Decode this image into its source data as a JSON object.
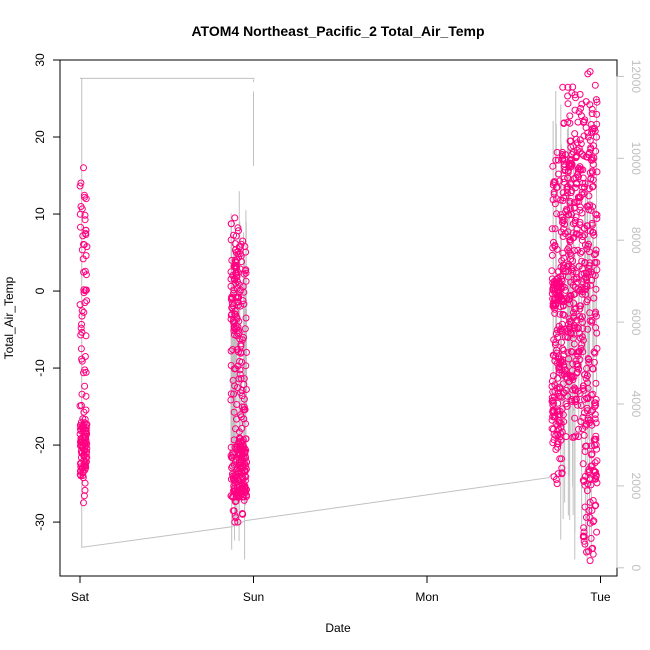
{
  "chart_data": {
    "type": "scatter",
    "title": "ATOM4 Northeast_Pacific_2 Total_Air_Temp",
    "xlabel": "Date",
    "ylabel": "Total_Air_Temp",
    "x_axis_type": "date",
    "xlim": [
      0,
      3.1
    ],
    "x_ticks": [
      {
        "value": 0,
        "label": "Sat"
      },
      {
        "value": 1,
        "label": "Sun"
      },
      {
        "value": 2,
        "label": "Mon"
      },
      {
        "value": 3,
        "label": "Tue"
      }
    ],
    "ylim": [
      -37,
      30
    ],
    "y_ticks": [
      -30,
      -20,
      -10,
      0,
      10,
      20,
      30
    ],
    "y2lim": [
      -200,
      12400
    ],
    "y2_ticks": [
      0,
      2000,
      4000,
      6000,
      8000,
      10000,
      12000
    ],
    "grid": false,
    "colors": {
      "points": "#ff0080",
      "secondary_line": "#c0c0c0",
      "secondary_axis": "#c0c0c0",
      "axis": "#000000"
    },
    "series": [
      {
        "kind": "scatter-bands",
        "axis": "left",
        "marker": "open-circle",
        "bands": [
          {
            "x_start": 0.0,
            "x_end": 0.04,
            "y_min": -27.5,
            "y_max": 16,
            "dense_y": [
              [
                -24,
                -17
              ]
            ]
          },
          {
            "x_start": 0.87,
            "x_end": 0.915,
            "y_min": -30,
            "y_max": 9.5,
            "dense_y": [
              [
                -27,
                -20
              ],
              [
                -5,
                5
              ]
            ]
          },
          {
            "x_start": 0.915,
            "x_end": 0.96,
            "y_min": -29,
            "y_max": 6.5,
            "dense_y": [
              [
                -27,
                -19
              ]
            ]
          },
          {
            "x_start": 2.72,
            "x_end": 2.78,
            "y_min": -25,
            "y_max": 18,
            "dense_y": [
              [
                -20,
                -5
              ],
              [
                -2,
                2
              ]
            ]
          },
          {
            "x_start": 2.78,
            "x_end": 2.9,
            "y_min": -19,
            "y_max": 26.5,
            "dense_y": [
              [
                -15,
                20
              ]
            ]
          },
          {
            "x_start": 2.9,
            "x_end": 2.98,
            "y_min": -35,
            "y_max": 28.5,
            "dense_y": [
              [
                -30,
                25
              ]
            ]
          }
        ]
      },
      {
        "kind": "line",
        "axis": "right",
        "points": [
          [
            0.0,
            11950
          ],
          [
            0.01,
            11950
          ],
          [
            0.01,
            500
          ],
          [
            0.87,
            1000
          ],
          [
            0.9,
            1050
          ],
          [
            0.93,
            1100
          ],
          [
            0.95,
            1150
          ],
          [
            2.7,
            2200
          ],
          [
            2.72,
            2300
          ]
        ],
        "top_segment": [
          [
            0.0,
            11950
          ],
          [
            1.0,
            11950
          ]
        ]
      }
    ]
  }
}
